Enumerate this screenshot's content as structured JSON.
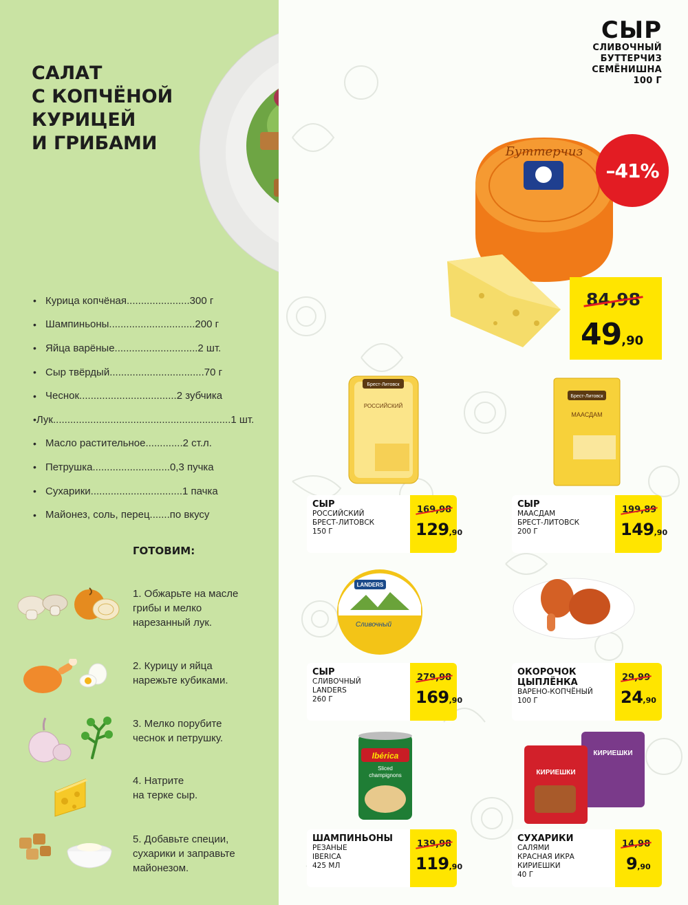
{
  "recipe": {
    "title_lines": [
      "САЛАТ",
      "С КОПЧЁНОЙ",
      "КУРИЦЕЙ",
      "И ГРИБАМИ"
    ],
    "ingredients": [
      {
        "text": "Курица копчёная......................300 г"
      },
      {
        "text": "Шампиньоны..............................200 г"
      },
      {
        "text": "Яйца варёные.............................2 шт."
      },
      {
        "text": "Сыр твёрдый.................................70 г"
      },
      {
        "text": "Чеснок..................................2 зубчика"
      },
      {
        "text": "Лук..............................................................1 шт."
      },
      {
        "text": "Масло растительное.............2 ст.л."
      },
      {
        "text": "Петрушка...........................0,3 пучка"
      },
      {
        "text": "Сухарики................................1 пачка"
      },
      {
        "text": "Майонез, соль, перец.......по вкусу"
      }
    ],
    "bullet": "•",
    "cook_title": "ГОТОВИМ:",
    "steps": [
      {
        "text": "1. Обжарьте на масле\nгрибы и мелко\nнарезанный лук."
      },
      {
        "text": "2. Курицу и яйца\nнарежьте кубиками."
      },
      {
        "text": "3. Мелко порубите\nчеснок и петрушку."
      },
      {
        "text": "4. Натрите\nна терке сыр."
      },
      {
        "text": "5. Добавьте специи,\nсухарики и заправьте\nмайонезом."
      }
    ]
  },
  "hero": {
    "title": "СЫР",
    "lines": [
      "СЛИВОЧНЫЙ",
      "БУТТЕРЧИЗ",
      "СЕМЁНИШНА",
      "100 Г"
    ],
    "discount": "–41%",
    "old_price": "84,98",
    "new_price_int": "49",
    "new_price_frac": ",90"
  },
  "products": [
    {
      "name": "СЫР",
      "sub": [
        "РОССИЙСКИЙ",
        "БРЕСТ-ЛИТОВСК",
        "150 Г"
      ],
      "old": "169,98",
      "int": "129",
      "frac": ",90"
    },
    {
      "name": "СЫР",
      "sub": [
        "МААСДАМ",
        "БРЕСТ-ЛИТОВСК",
        "200 Г"
      ],
      "old": "199,89",
      "int": "149",
      "frac": ",90"
    },
    {
      "name": "СЫР",
      "sub": [
        "СЛИВОЧНЫЙ",
        "LANDERS",
        "260 Г"
      ],
      "old": "279,98",
      "int": "169",
      "frac": ",90"
    },
    {
      "name": "ОКОРОЧОК\nЦЫПЛЁНКА",
      "sub": [
        "ВАРЕНО-КОПЧЁНЫЙ",
        "100 Г"
      ],
      "old": "29,99",
      "int": "24",
      "frac": ",90"
    },
    {
      "name": "ШАМПИНЬОНЫ",
      "sub": [
        "РЕЗАНЫЕ",
        "IBERICA",
        "425 МЛ"
      ],
      "old": "139,98",
      "int": "119",
      "frac": ",90"
    },
    {
      "name": "СУХАРИКИ",
      "sub": [
        "САЛЯМИ",
        "КРАСНАЯ ИКРА",
        "КИРИЕШКИ",
        "40 Г"
      ],
      "old": "14,98",
      "int": "9",
      "frac": ",90"
    }
  ],
  "packaging": {
    "brest": "Брест-Литовск",
    "rossiyskiy": "РОССИЙСКИЙ",
    "maasdam": "МААСДАМ",
    "landers": "LANDERS",
    "slivochny": "Сливочный",
    "iberica": "Ibérica",
    "sliced": "Sliced",
    "champignons": "champignons",
    "kirieshki": "КИРИЕШКИ",
    "butterchiz": "Буттерчиз"
  }
}
